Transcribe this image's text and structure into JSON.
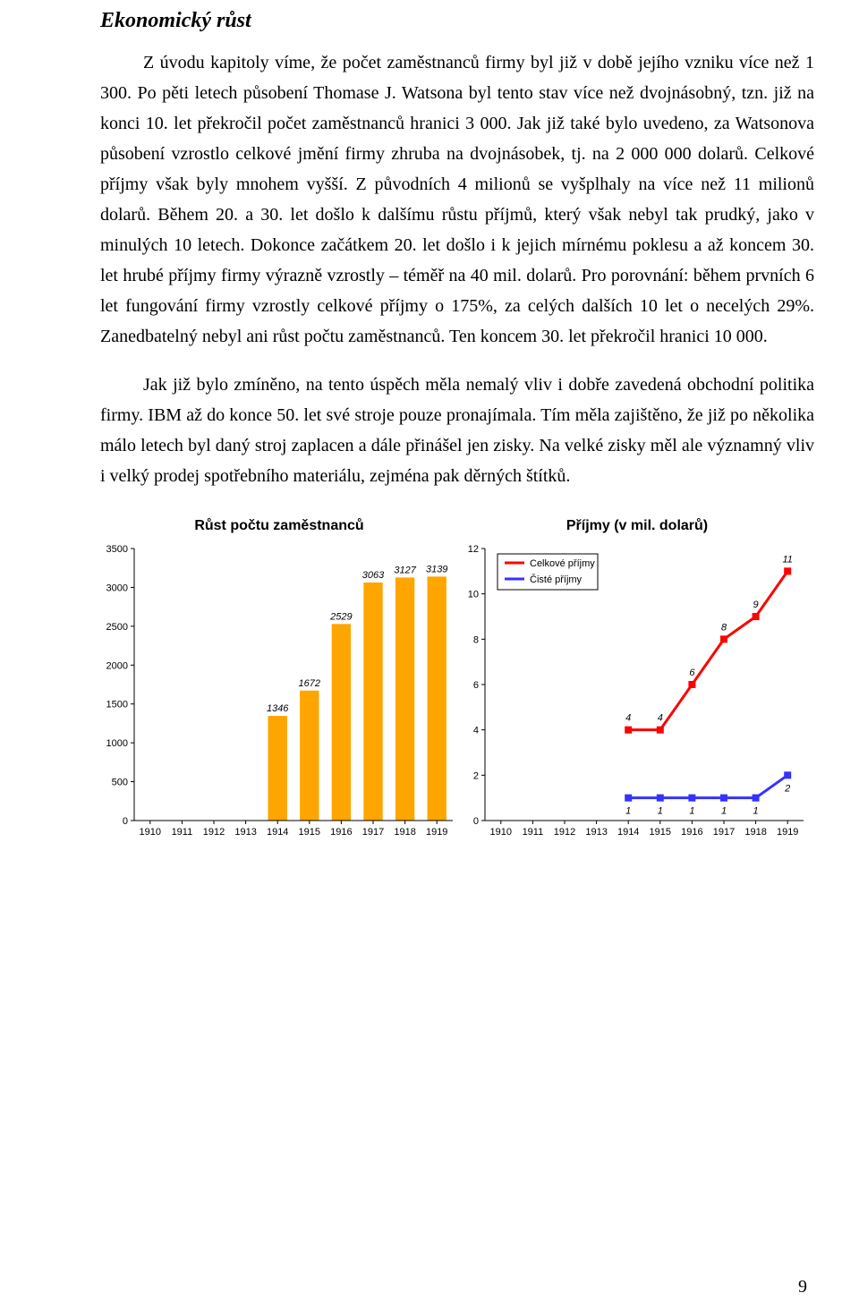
{
  "section_title": "Ekonomický růst",
  "paragraphs": {
    "p1": "Z úvodu kapitoly víme, že počet zaměstnanců firmy byl již v době jejího vzniku více než 1 300. Po pěti letech působení Thomase J. Watsona byl tento stav více než dvojnásobný, tzn. již na konci 10. let překročil počet zaměstnanců hranici 3 000. Jak již také bylo uvedeno, za Watsonova působení vzrostlo celkové jmění firmy zhruba na dvojnásobek, tj. na 2 000 000 dolarů. Celkové příjmy však byly mnohem vyšší. Z původních 4 milionů se vyšplhaly na více než 11 milionů dolarů. Během 20. a 30. let došlo k dalšímu růstu příjmů, který však nebyl tak prudký, jako v minulých 10 letech. Dokonce začátkem 20. let došlo i k jejich mírnému poklesu a až koncem 30. let hrubé příjmy firmy výrazně vzrostly – téměř na 40 mil. dolarů. Pro porovnání: během prvních 6 let fungování firmy vzrostly celkové příjmy o 175%, za celých dalších 10 let o necelých 29%. Zanedbatelný nebyl ani růst počtu zaměstnanců. Ten koncem 30. let překročil hranici 10 000.",
    "p2": "Jak již bylo zmíněno, na tento úspěch měla nemalý vliv i dobře zavedená obchodní politika firmy. IBM až do konce 50. let své stroje pouze pronajímala. Tím měla zajištěno, že již po několika málo letech byl daný stroj zaplacen a dále přinášel jen zisky. Na velké zisky měl ale významný vliv i velký prodej spotřebního materiálu, zejména pak děrných štítků."
  },
  "page_number": "9",
  "bar_chart": {
    "type": "bar",
    "title": "Růst počtu zaměstnanců",
    "categories": [
      "1910",
      "1911",
      "1912",
      "1913",
      "1914",
      "1915",
      "1916",
      "1917",
      "1918",
      "1919"
    ],
    "values": [
      null,
      null,
      null,
      null,
      1346,
      1672,
      2529,
      3063,
      3127,
      3139
    ],
    "bar_color": "#ffa500",
    "background_color": "#ffffff",
    "ylim": [
      0,
      3500
    ],
    "ytick_step": 500,
    "yticks": [
      0,
      500,
      1000,
      1500,
      2000,
      2500,
      3000,
      3500
    ],
    "label_fontsize": 11,
    "title_fontsize": 16,
    "bar_width": 0.6
  },
  "line_chart": {
    "type": "line",
    "title": "Příjmy (v mil. dolarů)",
    "categories": [
      "1910",
      "1911",
      "1912",
      "1913",
      "1914",
      "1915",
      "1916",
      "1917",
      "1918",
      "1919"
    ],
    "ylim": [
      0,
      12
    ],
    "ytick_step": 2,
    "yticks": [
      0,
      2,
      4,
      6,
      8,
      10,
      12
    ],
    "background_color": "#ffffff",
    "title_fontsize": 16,
    "label_fontsize": 11,
    "legend": {
      "position": "top_left_inside",
      "border_color": "#000000",
      "items": [
        {
          "label": "Celkové příjmy",
          "color": "#ff0000"
        },
        {
          "label": "Čisté příjmy",
          "color": "#3333ff"
        }
      ]
    },
    "series": [
      {
        "name": "Celkové příjmy",
        "color": "#ff0000",
        "marker": "square",
        "marker_size": 8,
        "line_width": 3,
        "values": [
          null,
          null,
          null,
          null,
          4,
          4,
          6,
          8,
          9,
          11
        ]
      },
      {
        "name": "Čisté příjmy",
        "color": "#3333ff",
        "marker": "square",
        "marker_size": 8,
        "line_width": 3,
        "values": [
          null,
          null,
          null,
          null,
          1,
          1,
          1,
          1,
          1,
          2
        ]
      }
    ]
  }
}
